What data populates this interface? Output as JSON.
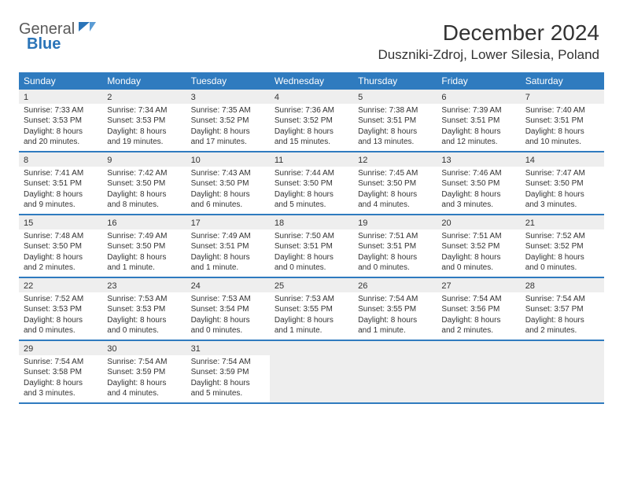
{
  "logo": {
    "part1": "General",
    "part2": "Blue"
  },
  "title": "December 2024",
  "subtitle": "Duszniki-Zdroj, Lower Silesia, Poland",
  "colors": {
    "header_bg": "#2f7bbf",
    "header_text": "#ffffff",
    "row_divider": "#2f7bbf",
    "daynum_bg": "#eeeeee",
    "body_bg": "#ffffff",
    "text": "#333333"
  },
  "day_names": [
    "Sunday",
    "Monday",
    "Tuesday",
    "Wednesday",
    "Thursday",
    "Friday",
    "Saturday"
  ],
  "weeks": [
    [
      {
        "n": "1",
        "sr": "Sunrise: 7:33 AM",
        "ss": "Sunset: 3:53 PM",
        "d1": "Daylight: 8 hours",
        "d2": "and 20 minutes."
      },
      {
        "n": "2",
        "sr": "Sunrise: 7:34 AM",
        "ss": "Sunset: 3:53 PM",
        "d1": "Daylight: 8 hours",
        "d2": "and 19 minutes."
      },
      {
        "n": "3",
        "sr": "Sunrise: 7:35 AM",
        "ss": "Sunset: 3:52 PM",
        "d1": "Daylight: 8 hours",
        "d2": "and 17 minutes."
      },
      {
        "n": "4",
        "sr": "Sunrise: 7:36 AM",
        "ss": "Sunset: 3:52 PM",
        "d1": "Daylight: 8 hours",
        "d2": "and 15 minutes."
      },
      {
        "n": "5",
        "sr": "Sunrise: 7:38 AM",
        "ss": "Sunset: 3:51 PM",
        "d1": "Daylight: 8 hours",
        "d2": "and 13 minutes."
      },
      {
        "n": "6",
        "sr": "Sunrise: 7:39 AM",
        "ss": "Sunset: 3:51 PM",
        "d1": "Daylight: 8 hours",
        "d2": "and 12 minutes."
      },
      {
        "n": "7",
        "sr": "Sunrise: 7:40 AM",
        "ss": "Sunset: 3:51 PM",
        "d1": "Daylight: 8 hours",
        "d2": "and 10 minutes."
      }
    ],
    [
      {
        "n": "8",
        "sr": "Sunrise: 7:41 AM",
        "ss": "Sunset: 3:51 PM",
        "d1": "Daylight: 8 hours",
        "d2": "and 9 minutes."
      },
      {
        "n": "9",
        "sr": "Sunrise: 7:42 AM",
        "ss": "Sunset: 3:50 PM",
        "d1": "Daylight: 8 hours",
        "d2": "and 8 minutes."
      },
      {
        "n": "10",
        "sr": "Sunrise: 7:43 AM",
        "ss": "Sunset: 3:50 PM",
        "d1": "Daylight: 8 hours",
        "d2": "and 6 minutes."
      },
      {
        "n": "11",
        "sr": "Sunrise: 7:44 AM",
        "ss": "Sunset: 3:50 PM",
        "d1": "Daylight: 8 hours",
        "d2": "and 5 minutes."
      },
      {
        "n": "12",
        "sr": "Sunrise: 7:45 AM",
        "ss": "Sunset: 3:50 PM",
        "d1": "Daylight: 8 hours",
        "d2": "and 4 minutes."
      },
      {
        "n": "13",
        "sr": "Sunrise: 7:46 AM",
        "ss": "Sunset: 3:50 PM",
        "d1": "Daylight: 8 hours",
        "d2": "and 3 minutes."
      },
      {
        "n": "14",
        "sr": "Sunrise: 7:47 AM",
        "ss": "Sunset: 3:50 PM",
        "d1": "Daylight: 8 hours",
        "d2": "and 3 minutes."
      }
    ],
    [
      {
        "n": "15",
        "sr": "Sunrise: 7:48 AM",
        "ss": "Sunset: 3:50 PM",
        "d1": "Daylight: 8 hours",
        "d2": "and 2 minutes."
      },
      {
        "n": "16",
        "sr": "Sunrise: 7:49 AM",
        "ss": "Sunset: 3:50 PM",
        "d1": "Daylight: 8 hours",
        "d2": "and 1 minute."
      },
      {
        "n": "17",
        "sr": "Sunrise: 7:49 AM",
        "ss": "Sunset: 3:51 PM",
        "d1": "Daylight: 8 hours",
        "d2": "and 1 minute."
      },
      {
        "n": "18",
        "sr": "Sunrise: 7:50 AM",
        "ss": "Sunset: 3:51 PM",
        "d1": "Daylight: 8 hours",
        "d2": "and 0 minutes."
      },
      {
        "n": "19",
        "sr": "Sunrise: 7:51 AM",
        "ss": "Sunset: 3:51 PM",
        "d1": "Daylight: 8 hours",
        "d2": "and 0 minutes."
      },
      {
        "n": "20",
        "sr": "Sunrise: 7:51 AM",
        "ss": "Sunset: 3:52 PM",
        "d1": "Daylight: 8 hours",
        "d2": "and 0 minutes."
      },
      {
        "n": "21",
        "sr": "Sunrise: 7:52 AM",
        "ss": "Sunset: 3:52 PM",
        "d1": "Daylight: 8 hours",
        "d2": "and 0 minutes."
      }
    ],
    [
      {
        "n": "22",
        "sr": "Sunrise: 7:52 AM",
        "ss": "Sunset: 3:53 PM",
        "d1": "Daylight: 8 hours",
        "d2": "and 0 minutes."
      },
      {
        "n": "23",
        "sr": "Sunrise: 7:53 AM",
        "ss": "Sunset: 3:53 PM",
        "d1": "Daylight: 8 hours",
        "d2": "and 0 minutes."
      },
      {
        "n": "24",
        "sr": "Sunrise: 7:53 AM",
        "ss": "Sunset: 3:54 PM",
        "d1": "Daylight: 8 hours",
        "d2": "and 0 minutes."
      },
      {
        "n": "25",
        "sr": "Sunrise: 7:53 AM",
        "ss": "Sunset: 3:55 PM",
        "d1": "Daylight: 8 hours",
        "d2": "and 1 minute."
      },
      {
        "n": "26",
        "sr": "Sunrise: 7:54 AM",
        "ss": "Sunset: 3:55 PM",
        "d1": "Daylight: 8 hours",
        "d2": "and 1 minute."
      },
      {
        "n": "27",
        "sr": "Sunrise: 7:54 AM",
        "ss": "Sunset: 3:56 PM",
        "d1": "Daylight: 8 hours",
        "d2": "and 2 minutes."
      },
      {
        "n": "28",
        "sr": "Sunrise: 7:54 AM",
        "ss": "Sunset: 3:57 PM",
        "d1": "Daylight: 8 hours",
        "d2": "and 2 minutes."
      }
    ],
    [
      {
        "n": "29",
        "sr": "Sunrise: 7:54 AM",
        "ss": "Sunset: 3:58 PM",
        "d1": "Daylight: 8 hours",
        "d2": "and 3 minutes."
      },
      {
        "n": "30",
        "sr": "Sunrise: 7:54 AM",
        "ss": "Sunset: 3:59 PM",
        "d1": "Daylight: 8 hours",
        "d2": "and 4 minutes."
      },
      {
        "n": "31",
        "sr": "Sunrise: 7:54 AM",
        "ss": "Sunset: 3:59 PM",
        "d1": "Daylight: 8 hours",
        "d2": "and 5 minutes."
      },
      null,
      null,
      null,
      null
    ]
  ]
}
